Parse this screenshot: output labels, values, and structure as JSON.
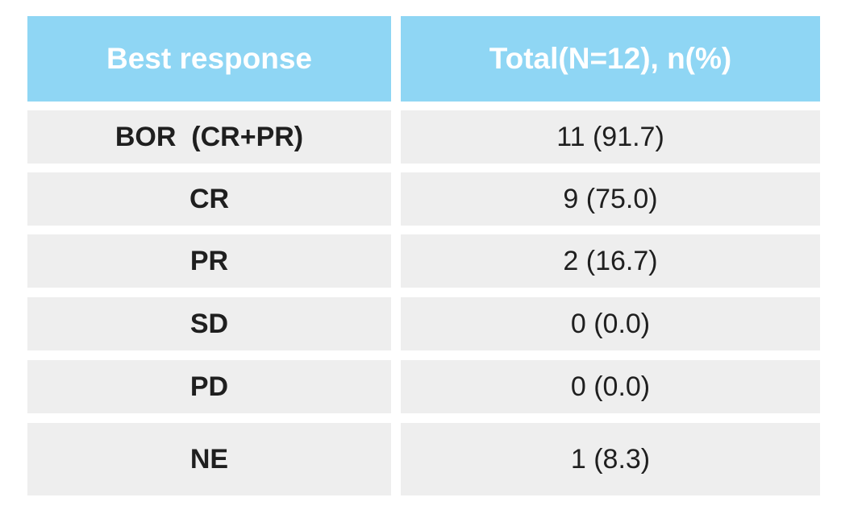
{
  "table": {
    "headers": {
      "response": "Best response",
      "total": "Total(N=12), n(%)"
    },
    "rows": [
      {
        "label": "BOR  (CR+PR)",
        "value": "11 (91.7)"
      },
      {
        "label": "CR",
        "value": "9 (75.0)"
      },
      {
        "label": "PR",
        "value": "2 (16.7)"
      },
      {
        "label": "SD",
        "value": "0 (0.0)"
      },
      {
        "label": "PD",
        "value": "0 (0.0)"
      },
      {
        "label": "NE",
        "value": "1 (8.3)"
      }
    ],
    "colors": {
      "header_bg": "#8fd6f4",
      "header_text": "#ffffff",
      "row_bg": "#eeeeee",
      "row_text": "#1f1f1f"
    }
  }
}
